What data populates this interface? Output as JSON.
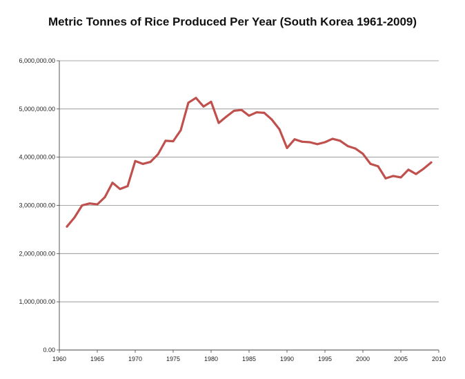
{
  "chart_data": {
    "type": "line",
    "title": "Metric Tonnes of Rice Produced Per Year (South Korea 1961-2009)",
    "xlabel": "",
    "ylabel": "",
    "xlim": [
      1960,
      2010
    ],
    "ylim": [
      0,
      6000000
    ],
    "x_ticks": [
      "1960",
      "1965",
      "1970",
      "1975",
      "1980",
      "1985",
      "1990",
      "1995",
      "2000",
      "2005",
      "2010"
    ],
    "y_ticks": [
      "0.00",
      "1,000,000.00",
      "2,000,000.00",
      "3,000,000.00",
      "4,000,000.00",
      "5,000,000.00",
      "6,000,000.00"
    ],
    "grid": "horizontal",
    "legend": "none",
    "series": [
      {
        "color": "#c0504d",
        "x": [
          1961,
          1962,
          1963,
          1964,
          1965,
          1966,
          1967,
          1968,
          1969,
          1970,
          1971,
          1972,
          1973,
          1974,
          1975,
          1976,
          1977,
          1978,
          1979,
          1980,
          1981,
          1982,
          1983,
          1984,
          1985,
          1986,
          1987,
          1988,
          1989,
          1990,
          1991,
          1992,
          1993,
          1994,
          1995,
          1996,
          1997,
          1998,
          1999,
          2000,
          2001,
          2002,
          2003,
          2004,
          2005,
          2006,
          2007,
          2008,
          2009
        ],
        "y": [
          2560000,
          2750000,
          3000000,
          3040000,
          3020000,
          3170000,
          3470000,
          3340000,
          3400000,
          3920000,
          3860000,
          3900000,
          4060000,
          4340000,
          4330000,
          4560000,
          5130000,
          5230000,
          5050000,
          5150000,
          4710000,
          4840000,
          4960000,
          4980000,
          4860000,
          4930000,
          4920000,
          4780000,
          4580000,
          4190000,
          4370000,
          4320000,
          4310000,
          4270000,
          4310000,
          4380000,
          4340000,
          4230000,
          4180000,
          4070000,
          3860000,
          3810000,
          3560000,
          3610000,
          3580000,
          3740000,
          3650000,
          3760000,
          3890000
        ]
      }
    ]
  }
}
